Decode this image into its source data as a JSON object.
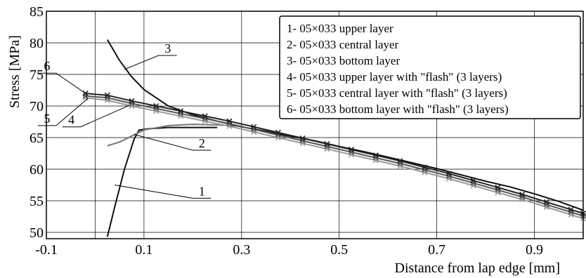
{
  "chart_data": {
    "type": "line",
    "xlabel": "Distance from lap edge  [mm]",
    "ylabel": "Stress  [MPa]",
    "xlim": [
      -0.1,
      1.0
    ],
    "ylim": [
      49,
      85
    ],
    "xticks": [
      "-0.1",
      "0.1",
      "0.3",
      "0.5",
      "0.7",
      "0.9"
    ],
    "xtick_values": [
      -0.1,
      0.1,
      0.3,
      0.5,
      0.7,
      0.9
    ],
    "yticks": [
      "50",
      "55",
      "60",
      "65",
      "70",
      "75",
      "80",
      "85"
    ],
    "ytick_values": [
      50,
      55,
      60,
      65,
      70,
      75,
      80,
      85
    ],
    "grid": true,
    "legend_position": "top-right",
    "legend": [
      "1- 05×033 upper layer",
      "2- 05×033 central layer",
      "3- 05×033 bottom layer",
      "4- 05×033 upper layer with \"flash\" (3 layers)",
      "5- 05×033 central layer with \"flash\" (3 layers)",
      "6- 05×033 bottom layer with \"flash\" (3 layers)"
    ],
    "series": [
      {
        "name": "1",
        "color": "#111111",
        "marker": "none",
        "x": [
          0.025,
          0.04,
          0.06,
          0.08,
          0.09,
          0.11,
          0.15,
          0.2,
          0.25
        ],
        "y": [
          49.3,
          54,
          60,
          64.8,
          66.2,
          66.4,
          66.6,
          66.6,
          66.6
        ]
      },
      {
        "name": "2",
        "color": "#777777",
        "marker": "none",
        "x": [
          0.025,
          0.05,
          0.1,
          0.15,
          0.2,
          0.25,
          0.3
        ],
        "y": [
          63.7,
          64.3,
          66.2,
          66.9,
          67.1,
          67.0,
          66.8
        ]
      },
      {
        "name": "3",
        "color": "#111111",
        "marker": "none",
        "x": [
          0.025,
          0.05,
          0.075,
          0.1,
          0.15,
          0.2,
          0.25,
          0.3,
          0.35,
          0.4,
          0.45,
          0.5,
          0.55,
          0.6,
          0.65,
          0.7,
          0.75,
          0.8,
          0.85,
          0.9,
          0.95,
          1.0
        ],
        "y": [
          80.5,
          77.2,
          74.6,
          72.6,
          70.0,
          68.6,
          67.6,
          66.7,
          66.0,
          65.2,
          64.5,
          63.6,
          62.8,
          61.9,
          61.0,
          60.1,
          59.1,
          58.1,
          57.2,
          56.1,
          54.9,
          53.5
        ]
      },
      {
        "name": "4",
        "color": "#999999",
        "marker": "x",
        "x": [
          -0.02,
          0.025,
          0.075,
          0.125,
          0.175,
          0.225,
          0.275,
          0.325,
          0.375,
          0.425,
          0.475,
          0.525,
          0.575,
          0.625,
          0.675,
          0.725,
          0.775,
          0.825,
          0.875,
          0.925,
          0.975,
          1.0
        ],
        "y": [
          71.3,
          70.9,
          70.0,
          69.2,
          68.4,
          67.6,
          66.8,
          65.9,
          65.0,
          64.1,
          63.2,
          62.3,
          61.4,
          60.5,
          59.5,
          58.5,
          57.4,
          56.3,
          55.2,
          54.0,
          52.8,
          52.2
        ]
      },
      {
        "name": "5",
        "color": "#555555",
        "marker": "x",
        "x": [
          -0.02,
          0.025,
          0.075,
          0.125,
          0.175,
          0.225,
          0.275,
          0.325,
          0.375,
          0.425,
          0.475,
          0.525,
          0.575,
          0.625,
          0.675,
          0.725,
          0.775,
          0.825,
          0.875,
          0.925,
          0.975,
          1.0
        ],
        "y": [
          71.6,
          71.3,
          70.4,
          69.6,
          68.8,
          68.0,
          67.2,
          66.3,
          65.4,
          64.5,
          63.6,
          62.7,
          61.8,
          60.9,
          59.9,
          58.9,
          57.8,
          56.7,
          55.6,
          54.4,
          53.2,
          52.6
        ]
      },
      {
        "name": "6",
        "color": "#222222",
        "marker": "x",
        "x": [
          -0.02,
          0.025,
          0.075,
          0.125,
          0.175,
          0.225,
          0.275,
          0.325,
          0.375,
          0.425,
          0.475,
          0.525,
          0.575,
          0.625,
          0.675,
          0.725,
          0.775,
          0.825,
          0.875,
          0.925,
          0.975,
          1.0
        ],
        "y": [
          72.0,
          71.7,
          70.8,
          70.0,
          69.2,
          68.4,
          67.6,
          66.7,
          65.8,
          64.9,
          64.0,
          63.1,
          62.2,
          61.3,
          60.3,
          59.3,
          58.2,
          57.1,
          56.0,
          54.8,
          53.6,
          53.0
        ]
      }
    ],
    "callouts": [
      {
        "text": "1",
        "x": 0.04,
        "y": 57.5,
        "lx": 0.2,
        "ly": 55.4
      },
      {
        "text": "2",
        "x": 0.08,
        "y": 65.5,
        "lx": 0.2,
        "ly": 63.0
      },
      {
        "text": "3",
        "x": 0.06,
        "y": 75.8,
        "lx": 0.13,
        "ly": 78.0
      },
      {
        "text": "4",
        "x": 0.07,
        "y": 70.1,
        "lx": -0.03,
        "ly": 66.7
      },
      {
        "text": "5",
        "x": -0.015,
        "y": 71.2,
        "lx": -0.08,
        "ly": 66.9
      },
      {
        "text": "6",
        "x": -0.02,
        "y": 72.0,
        "lx": -0.08,
        "ly": 75.2
      }
    ]
  }
}
